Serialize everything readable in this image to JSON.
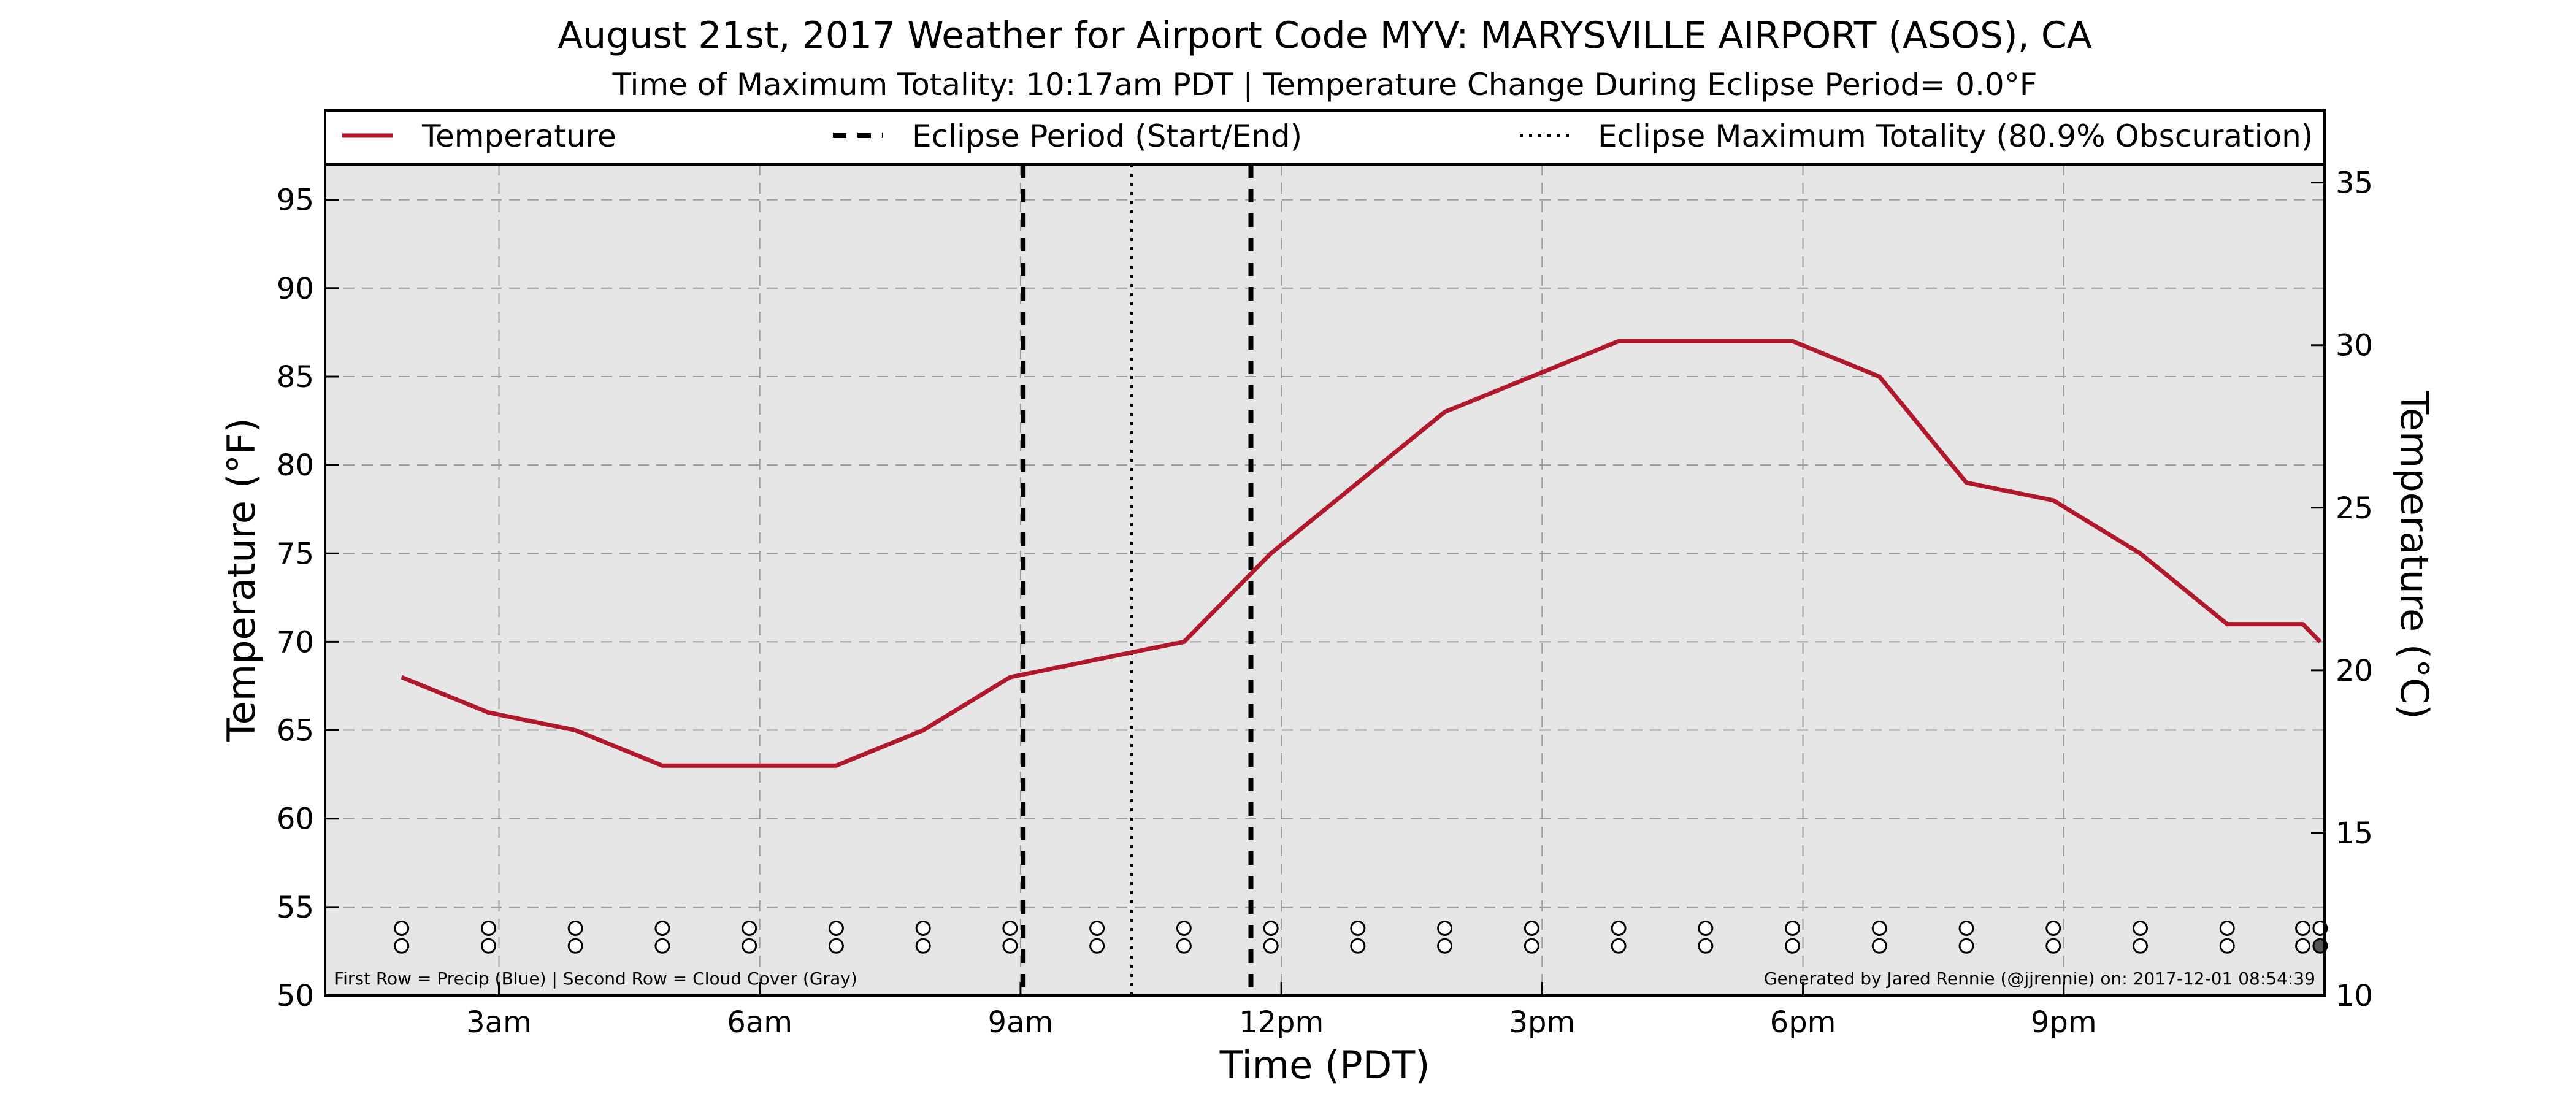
{
  "chart_data": {
    "type": "line",
    "title": "August 21st, 2017 Weather for Airport Code MYV: MARYSVILLE AIRPORT (ASOS), CA",
    "subtitle": "Time of Maximum Totality: 10:17am PDT | Temperature Change During Eclipse Period= 0.0°F",
    "xlabel": "Time (PDT)",
    "ylabel": "Temperature (°F)",
    "ylabel_right": "Temperature (°C)",
    "xlim": [
      1.0,
      24.0
    ],
    "ylim": [
      50,
      97
    ],
    "ylim_right": [
      10,
      35.56
    ],
    "x_ticks": [
      {
        "x": 3,
        "label": "3am"
      },
      {
        "x": 6,
        "label": "6am"
      },
      {
        "x": 9,
        "label": "9am"
      },
      {
        "x": 12,
        "label": "12pm"
      },
      {
        "x": 15,
        "label": "3pm"
      },
      {
        "x": 18,
        "label": "6pm"
      },
      {
        "x": 21,
        "label": "9pm"
      }
    ],
    "y_ticks": [
      50,
      55,
      60,
      65,
      70,
      75,
      80,
      85,
      90,
      95
    ],
    "y_ticks_right": [
      10,
      15,
      20,
      25,
      30,
      35
    ],
    "grid": true,
    "legend_position": "top",
    "legend": [
      {
        "label": "Temperature",
        "style": "solid",
        "color": "#b2182b"
      },
      {
        "label": "Eclipse Period (Start/End)",
        "style": "dashed",
        "color": "#000000"
      },
      {
        "label": "Eclipse Maximum Totality (80.9% Obscuration)",
        "style": "dotted",
        "color": "#000000"
      }
    ],
    "series": [
      {
        "name": "Temperature",
        "color": "#b2182b",
        "points": [
          [
            1.88,
            68
          ],
          [
            2.88,
            66
          ],
          [
            3.88,
            65
          ],
          [
            4.88,
            63
          ],
          [
            5.88,
            63
          ],
          [
            6.88,
            63
          ],
          [
            7.88,
            65
          ],
          [
            8.88,
            68
          ],
          [
            9.88,
            69
          ],
          [
            10.88,
            70
          ],
          [
            11.88,
            75
          ],
          [
            12.88,
            79
          ],
          [
            13.88,
            83
          ],
          [
            14.88,
            85
          ],
          [
            15.88,
            87
          ],
          [
            16.88,
            87
          ],
          [
            17.88,
            87
          ],
          [
            18.88,
            85
          ],
          [
            19.88,
            79
          ],
          [
            20.88,
            78
          ],
          [
            21.88,
            75
          ],
          [
            22.88,
            71
          ],
          [
            23.75,
            71
          ],
          [
            23.95,
            70
          ]
        ]
      }
    ],
    "eclipse_period": [
      9.03,
      11.65
    ],
    "eclipse_max": 10.28,
    "markers": {
      "row_labels": [
        "First Row = Precip (Blue)",
        "Second Row = Cloud Cover (Gray)"
      ],
      "x": [
        1.88,
        2.88,
        3.88,
        4.88,
        5.88,
        6.88,
        7.88,
        8.88,
        9.88,
        10.88,
        11.88,
        12.88,
        13.88,
        14.88,
        15.88,
        16.88,
        17.88,
        18.88,
        19.88,
        20.88,
        21.88,
        22.88,
        23.75,
        23.95
      ],
      "precip_y": 53.8,
      "cloud_y": 52.8
    },
    "footnote_left": "First Row = Precip (Blue) | Second Row = Cloud Cover (Gray)",
    "footnote_right": "Generated by Jared Rennie (@jjrennie) on: 2017-12-01 08:54:39"
  }
}
